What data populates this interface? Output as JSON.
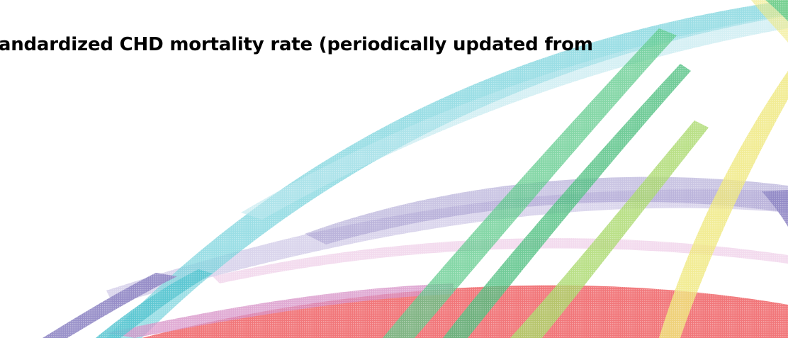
{
  "slide": {
    "title": "Age-standardized CHD mortality rate (periodically updated from"
  },
  "colors": {
    "background": "#ffffff",
    "title_text": "#000000",
    "ribbon_cyan": "#79d3dc",
    "ribbon_green": "#5cc98a",
    "ribbon_lime": "#a9d86a",
    "ribbon_yellow": "#efe77a",
    "ribbon_purple": "#8f86c4",
    "ribbon_pink": "#d68fc6",
    "ribbon_red": "#ee5f63",
    "ribbon_lavender": "#bcb3dc"
  }
}
